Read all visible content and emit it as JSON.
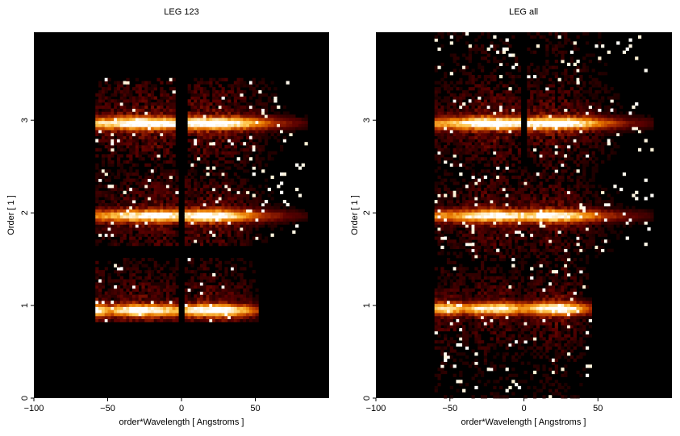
{
  "chart_data": [
    {
      "type": "heatmap",
      "title": "LEG 123",
      "xlabel": "order*Wavelength [ Angstroms ]",
      "ylabel": "Order [ 1 ]",
      "xlim": [
        -100,
        100
      ],
      "ylim": [
        0,
        3.95
      ],
      "xticks": [
        -100,
        -50,
        0,
        50
      ],
      "yticks": [
        0,
        1,
        2,
        3
      ],
      "colormap": [
        "#000000",
        "#5a0000",
        "#b03000",
        "#e87800",
        "#ffc850",
        "#ffffff"
      ],
      "bands": [
        {
          "order": 1,
          "ylo": 0.82,
          "yhi": 1.5,
          "xmin": -58,
          "xmax": 53,
          "gap_lo": -2,
          "gap_hi": 2,
          "peak": 0.95,
          "profile": [
            [
              -58,
              1.0
            ],
            [
              -55,
              0.85
            ],
            [
              -48,
              0.55
            ],
            [
              -42,
              0.75
            ],
            [
              -30,
              0.95
            ],
            [
              -15,
              0.8
            ],
            [
              -3,
              0.65
            ],
            [
              3,
              0.7
            ],
            [
              12,
              0.9
            ],
            [
              25,
              1.0
            ],
            [
              35,
              0.8
            ],
            [
              45,
              0.55
            ],
            [
              52,
              0.35
            ]
          ]
        },
        {
          "order": 2,
          "ylo": 1.65,
          "yhi": 2.5,
          "xmin": -58,
          "xmax": 85,
          "gap_lo": -2,
          "gap_hi": 2,
          "peak": 1.97,
          "profile": [
            [
              -58,
              0.55
            ],
            [
              -45,
              0.65
            ],
            [
              -30,
              0.85
            ],
            [
              -15,
              0.95
            ],
            [
              -3,
              0.8
            ],
            [
              3,
              0.8
            ],
            [
              15,
              0.95
            ],
            [
              28,
              0.9
            ],
            [
              40,
              0.65
            ],
            [
              55,
              0.35
            ],
            [
              70,
              0.2
            ],
            [
              85,
              0.1
            ]
          ]
        },
        {
          "order": 3,
          "ylo": 2.5,
          "yhi": 3.45,
          "xmin": -58,
          "xmax": 85,
          "gap_lo": -4,
          "gap_hi": 4,
          "peak": 2.97,
          "profile": [
            [
              -58,
              0.7
            ],
            [
              -45,
              0.8
            ],
            [
              -30,
              1.0
            ],
            [
              -15,
              1.0
            ],
            [
              -5,
              0.9
            ],
            [
              5,
              0.9
            ],
            [
              15,
              1.0
            ],
            [
              28,
              1.0
            ],
            [
              40,
              0.8
            ],
            [
              55,
              0.5
            ],
            [
              70,
              0.25
            ],
            [
              85,
              0.12
            ]
          ]
        }
      ]
    },
    {
      "type": "heatmap",
      "title": "LEG all",
      "xlabel": "order*Wavelength [ Angstroms ]",
      "ylabel": "Order [ 1 ]",
      "xlim": [
        -100,
        100
      ],
      "ylim": [
        0,
        3.95
      ],
      "xticks": [
        -100,
        -50,
        0,
        50
      ],
      "yticks": [
        0,
        1,
        2,
        3
      ],
      "colormap": [
        "#000000",
        "#5a0000",
        "#b03000",
        "#e87800",
        "#ffc850",
        "#ffffff"
      ],
      "bands": [
        {
          "order": 1,
          "ylo": 0.0,
          "yhi": 1.5,
          "xmin": -60,
          "xmax": 45,
          "gap_lo": -1,
          "gap_hi": 1,
          "peak": 0.97,
          "profile": [
            [
              -60,
              0.7
            ],
            [
              -50,
              0.8
            ],
            [
              -40,
              0.55
            ],
            [
              -30,
              0.8
            ],
            [
              -15,
              0.85
            ],
            [
              -3,
              0.6
            ],
            [
              3,
              0.6
            ],
            [
              15,
              0.9
            ],
            [
              25,
              1.0
            ],
            [
              35,
              0.7
            ],
            [
              45,
              0.35
            ]
          ]
        },
        {
          "order": 2,
          "ylo": 1.5,
          "yhi": 2.5,
          "xmin": -60,
          "xmax": 88,
          "gap_lo": -1,
          "gap_hi": 1,
          "peak": 1.97,
          "profile": [
            [
              -60,
              0.55
            ],
            [
              -45,
              0.6
            ],
            [
              -30,
              0.85
            ],
            [
              -15,
              0.95
            ],
            [
              -3,
              0.75
            ],
            [
              3,
              0.75
            ],
            [
              15,
              0.95
            ],
            [
              28,
              0.85
            ],
            [
              40,
              0.6
            ],
            [
              55,
              0.35
            ],
            [
              70,
              0.2
            ],
            [
              88,
              0.1
            ]
          ]
        },
        {
          "order": 3,
          "ylo": 2.5,
          "yhi": 3.95,
          "xmin": -60,
          "xmax": 88,
          "gap_lo": -3,
          "gap_hi": 3,
          "peak": 2.97,
          "profile": [
            [
              -60,
              0.6
            ],
            [
              -45,
              0.7
            ],
            [
              -30,
              1.0
            ],
            [
              -15,
              1.0
            ],
            [
              -5,
              0.85
            ],
            [
              5,
              0.85
            ],
            [
              15,
              1.0
            ],
            [
              28,
              1.0
            ],
            [
              40,
              0.75
            ],
            [
              55,
              0.45
            ],
            [
              70,
              0.22
            ],
            [
              88,
              0.12
            ]
          ]
        }
      ]
    }
  ]
}
